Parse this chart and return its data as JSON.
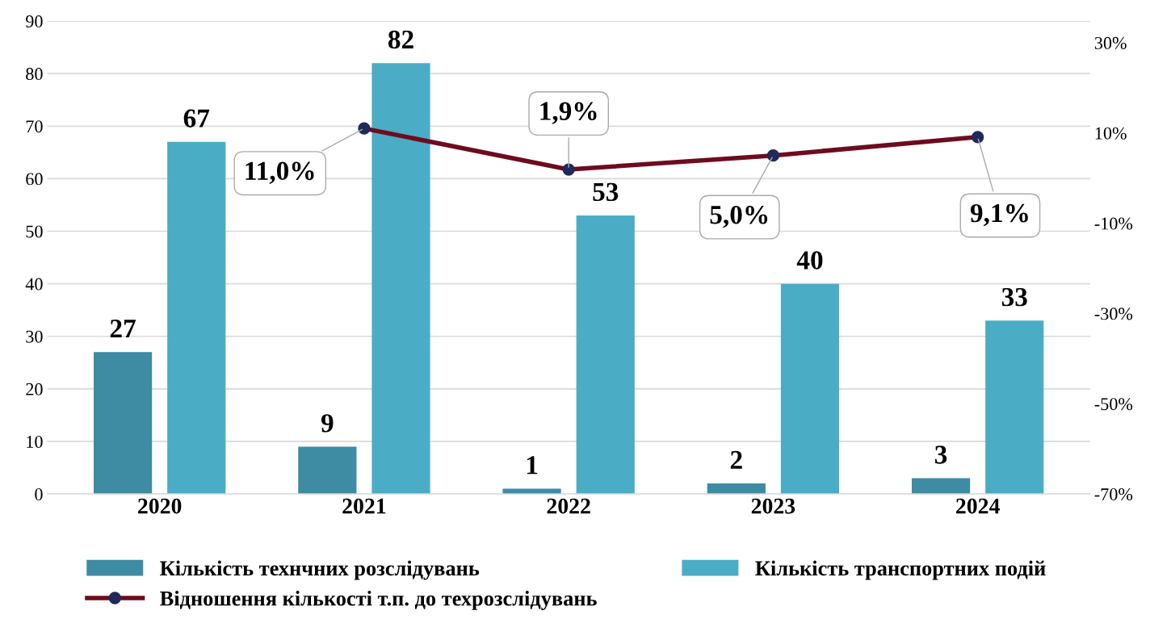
{
  "chart_data": {
    "type": "bar",
    "categories": [
      "2020",
      "2021",
      "2022",
      "2023",
      "2024"
    ],
    "series": [
      {
        "name": "Кількість технчних розслідувань",
        "color": "#3d8ca3",
        "values": [
          27,
          9,
          1,
          2,
          3
        ]
      },
      {
        "name": "Кількість транспортних подій",
        "color": "#4bacc6",
        "values": [
          67,
          82,
          53,
          40,
          33
        ]
      },
      {
        "name": "Відношення кількості т.п. до техрозслідувань",
        "type": "line",
        "axis": "y2",
        "color": "#6e0b1e",
        "marker": "circle",
        "values": [
          null,
          11.0,
          1.9,
          5.0,
          9.1
        ],
        "value_labels": [
          null,
          "11,0%",
          "1,9%",
          "5,0%",
          "9,1%"
        ]
      }
    ],
    "data_labels": true,
    "ylim": [
      0,
      90
    ],
    "yticks": [
      0,
      10,
      20,
      30,
      40,
      50,
      60,
      70,
      80,
      90
    ],
    "y2lim": [
      -70,
      34.8
    ],
    "y2ticks": [
      {
        "value": -70,
        "label": "-70%"
      },
      {
        "value": -50,
        "label": "-50%"
      },
      {
        "value": -30,
        "label": "-30%"
      },
      {
        "value": -10,
        "label": "-10%"
      },
      {
        "value": 10,
        "label": "10%"
      },
      {
        "value": 30,
        "label": "30%"
      }
    ],
    "grid": "y",
    "legend": "bottom"
  }
}
